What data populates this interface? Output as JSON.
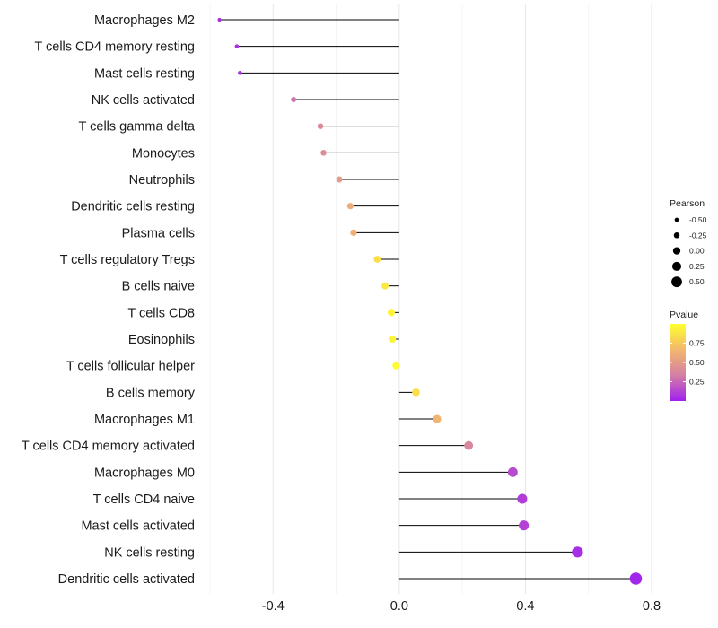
{
  "chart_data": {
    "type": "lollipop",
    "categories": [
      "Macrophages M2",
      "T cells CD4 memory resting",
      "Mast cells resting",
      "NK cells activated",
      "T cells gamma delta",
      "Monocytes",
      "Neutrophils",
      "Dendritic cells resting",
      "Plasma cells",
      "T cells regulatory  Tregs ",
      "B cells naive",
      "T cells CD8",
      "Eosinophils",
      "T cells follicular helper",
      "B cells memory",
      "Macrophages M1",
      "T cells CD4 memory activated",
      "Macrophages M0",
      "T cells CD4 naive",
      "Mast cells activated",
      "NK cells resting",
      "Dendritic cells activated"
    ],
    "values": [
      -0.57,
      -0.515,
      -0.505,
      -0.335,
      -0.25,
      -0.24,
      -0.19,
      -0.155,
      -0.145,
      -0.07,
      -0.045,
      -0.025,
      -0.022,
      -0.01,
      0.053,
      0.12,
      0.22,
      0.36,
      0.39,
      0.395,
      0.565,
      0.75
    ],
    "pvalues": [
      0.05,
      0.06,
      0.07,
      0.3,
      0.4,
      0.42,
      0.5,
      0.6,
      0.62,
      0.85,
      0.9,
      0.95,
      0.95,
      0.98,
      0.85,
      0.65,
      0.38,
      0.15,
      0.1,
      0.12,
      0.05,
      0.02
    ],
    "xlim": [
      -0.6,
      0.8
    ],
    "xticks": [
      -0.4,
      0.0,
      0.4,
      0.8
    ],
    "xtick_labels": [
      "-0.4",
      "0.0",
      "0.4",
      "0.8"
    ],
    "xlabel": "",
    "ylabel": "",
    "title": "",
    "grid": true,
    "legend_placement": "right",
    "size_legend": {
      "title": "Pearson",
      "entries": [
        {
          "label": "-0.50",
          "value": -0.5
        },
        {
          "label": "-0.25",
          "value": -0.25
        },
        {
          "label": "0.00",
          "value": 0.0
        },
        {
          "label": "0.25",
          "value": 0.25
        },
        {
          "label": "0.50",
          "value": 0.5
        }
      ]
    },
    "color_legend": {
      "title": "Pvalue",
      "ticks": [
        {
          "label": "0.75",
          "value": 0.75
        },
        {
          "label": "0.50",
          "value": 0.5
        },
        {
          "label": "0.25",
          "value": 0.25
        }
      ],
      "range": [
        0.0,
        1.0
      ],
      "colors": [
        "#a020f0",
        "#d47fa4",
        "#f3b76e",
        "#ffff2e"
      ]
    },
    "stem_color": "#000000"
  }
}
